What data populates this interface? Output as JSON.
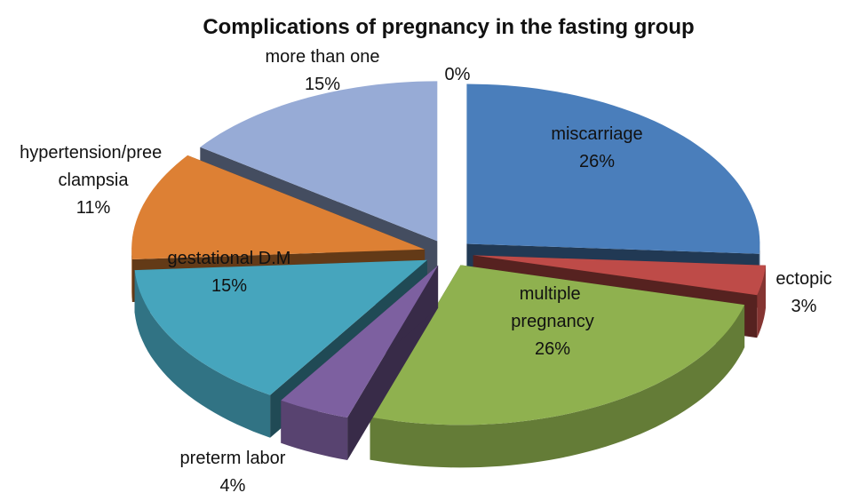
{
  "chart_data": {
    "type": "pie",
    "title": "Complications of pregnancy in the fasting group",
    "categories": [
      "miscarriage",
      "ectopic",
      "multiple pregnancy",
      "preterm labor",
      "gestational D.M",
      "hypertension/pree clampsia",
      "more than one",
      null
    ],
    "values": [
      26,
      3,
      26,
      4,
      15,
      11,
      15,
      0
    ],
    "value_labels": [
      "26%",
      "3%",
      "26%",
      "4%",
      "15%",
      "11%",
      "15%",
      "0%"
    ],
    "colors": [
      "#4a7ebb",
      "#be4b48",
      "#8fb14f",
      "#7d60a0",
      "#46a5bd",
      "#dd8034",
      "#97abd6",
      "#bbbbbb"
    ]
  }
}
